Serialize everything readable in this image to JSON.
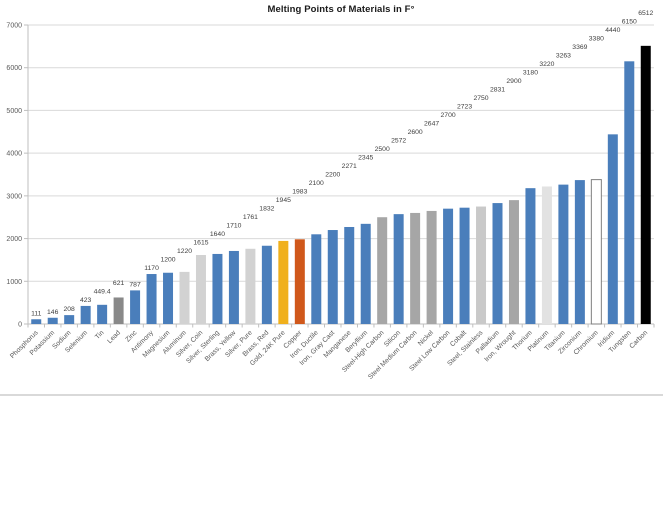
{
  "chart_data": {
    "type": "bar",
    "title": "Melting Points of Materials in F°",
    "xlabel": "",
    "ylabel": "",
    "ylim": [
      0,
      7000
    ],
    "ytick_step": 1000,
    "ytick_labels": [
      "0",
      "1000",
      "2000",
      "3000",
      "4000",
      "5000",
      "6000",
      "7000"
    ],
    "grid": "horizontal",
    "legend": "none",
    "categories": [
      "Phosphorus",
      "Potassium",
      "Sodium",
      "Selenium",
      "Tin",
      "Lead",
      "Zinc",
      "Antimony",
      "Magnesium",
      "Aluminum",
      "Silver, Coin",
      "Silver, Sterling",
      "Brass, Yellow",
      "Silver, Pure",
      "Brass, Red",
      "Gold, 24K Pure",
      "Copper",
      "Iron, Ductile",
      "Iron, Gray Cast",
      "Manganese",
      "Beryllium",
      "Steel-High Carbon",
      "Silicon",
      "Steel Medium Carbon",
      "Nickel",
      "Steel Low Carbon",
      "Cobalt",
      "Steel, Stainless",
      "Palladium",
      "Iron, Wrought",
      "Thorium",
      "Platinum",
      "Titanium",
      "Zirconium",
      "Chromium",
      "Iridium",
      "Tungsten",
      "Carbon"
    ],
    "values": [
      111,
      146,
      208,
      423,
      449.4,
      621,
      787,
      1170,
      1200,
      1220,
      1615,
      1640,
      1710,
      1761,
      1832,
      1945,
      1983,
      2100,
      2200,
      2271,
      2345,
      2500,
      2572,
      2600,
      2647,
      2700,
      2723,
      2750,
      2831,
      2900,
      3180,
      3220,
      3263,
      3369,
      3380,
      4440,
      6150,
      6512
    ],
    "data_labels": [
      "111",
      "146",
      "208",
      "423",
      "449.4",
      "621",
      "787",
      "1170",
      "1200",
      "1220",
      "1615",
      "1640",
      "1710",
      "1761",
      "1832",
      "1945",
      "1983",
      "2100",
      "2200",
      "2271",
      "2345",
      "2500",
      "2572",
      "2600",
      "2647",
      "2700",
      "2723",
      "2750",
      "2831",
      "2900",
      "3180",
      "3220",
      "3263",
      "3369",
      "3380",
      "4440",
      "6150",
      "6512"
    ],
    "bar_color_keys": [
      "blue",
      "blue",
      "blue",
      "blue",
      "blue",
      "lead_gray",
      "blue",
      "blue",
      "blue",
      "silver",
      "silver",
      "blue",
      "blue",
      "silver",
      "blue",
      "gold",
      "copper",
      "blue",
      "blue",
      "blue",
      "blue",
      "steel_gray",
      "blue",
      "steel_gray",
      "steel_gray",
      "blue",
      "blue",
      "stainless",
      "blue",
      "steel_gray",
      "blue",
      "platinum",
      "blue",
      "blue",
      "chromium",
      "blue",
      "blue",
      "carbon"
    ],
    "palette": {
      "blue": "#4a7ebb",
      "lead_gray": "#898989",
      "steel_gray": "#a6a6a6",
      "silver": "#d2d2d2",
      "stainless": "#c9c9c9",
      "platinum": "#e2e2e2",
      "gold": "#f0b01c",
      "copper": "#d0581b",
      "chromium": "#ffffff",
      "chromium_outline": "#7f7f7f",
      "carbon": "#000000"
    },
    "style": {
      "gridline_color": "#d9d9d9",
      "axis_color": "#bfbfbf",
      "axis_text_color": "#595959",
      "value_label_color": "#404040",
      "separator_line_color": "#d9d9d9",
      "background": "#ffffff"
    }
  }
}
